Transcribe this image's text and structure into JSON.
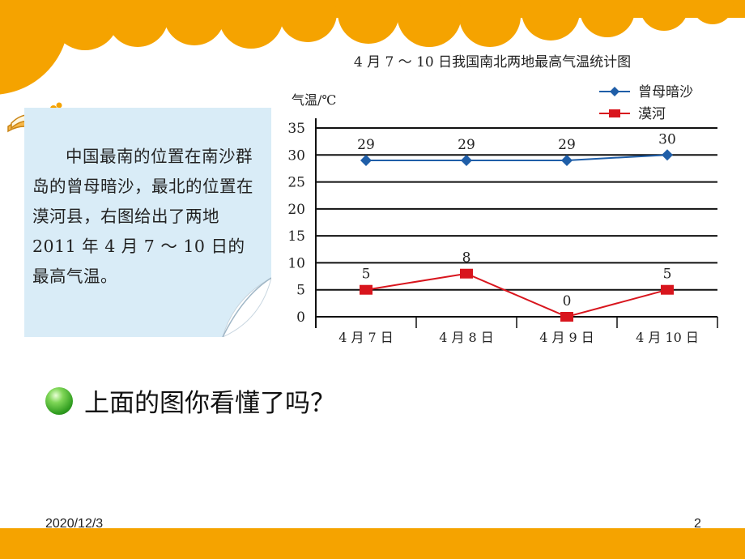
{
  "note": {
    "text": "中国最南的位置在南沙群岛的曾母暗沙，最北的位置在漠河县，右图给出了两地 2011 年 4 月 7 ～ 10 日的最高气温。"
  },
  "question": {
    "text": "上面的图你看懂了吗？"
  },
  "footer": {
    "date": "2020/12/3",
    "page": "2"
  },
  "colors": {
    "banner": "#f5a300",
    "card": "#d9ecf7",
    "series_south": "#1f5ea8",
    "series_north": "#d8151d",
    "footer_bar": "#f5a300"
  },
  "icons": [
    "open-book-icon",
    "green-bullet-icon"
  ],
  "chart_data": {
    "type": "line",
    "title": "4 月 7 ～ 10 日我国南北两地最高气温统计图",
    "ylabel": "气温/℃",
    "xlabel": "",
    "categories": [
      "4 月 7 日",
      "4 月 8 日",
      "4 月 9 日",
      "4 月 10 日"
    ],
    "ylim": [
      0,
      35
    ],
    "yticks": [
      "0",
      "5",
      "10",
      "15",
      "20",
      "25",
      "30",
      "35"
    ],
    "grid": true,
    "legend_position": "top-right",
    "series": [
      {
        "name": "曾母暗沙",
        "marker": "diamond",
        "values": [
          29,
          29,
          29,
          30
        ],
        "labels": [
          "29",
          "29",
          "29",
          "30"
        ]
      },
      {
        "name": "漠河",
        "marker": "square",
        "values": [
          5,
          8,
          0,
          5
        ],
        "labels": [
          "5",
          "8",
          "0",
          "5"
        ]
      }
    ]
  }
}
